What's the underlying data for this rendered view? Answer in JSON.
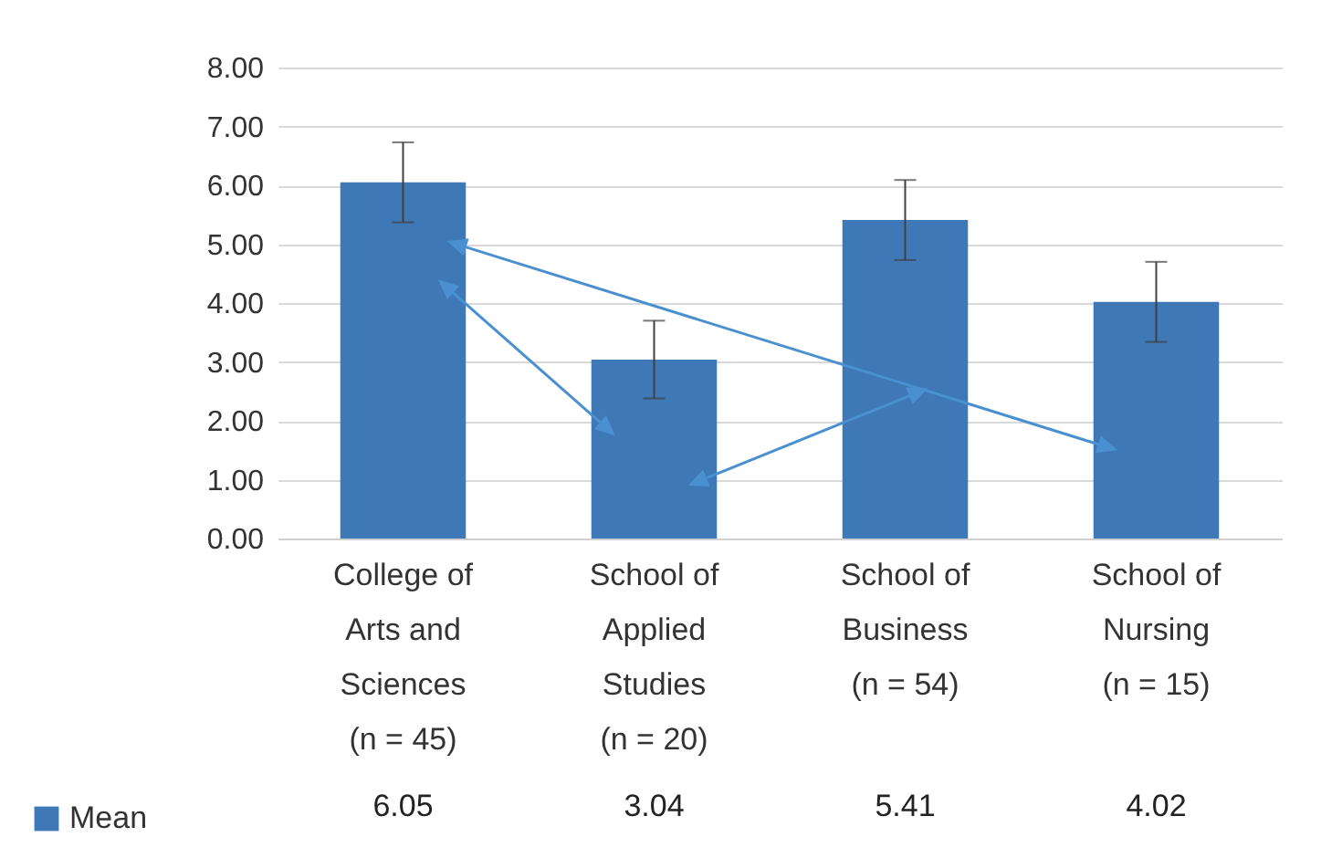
{
  "chart_data": {
    "type": "bar",
    "categories": [
      "College of Arts and Sciences (n = 45)",
      "School of Applied Studies (n = 20)",
      "School of Business (n = 54)",
      "School of Nursing (n = 15)"
    ],
    "series": [
      {
        "name": "Mean",
        "color": "#3e78b6",
        "values": [
          6.05,
          3.04,
          5.41,
          4.02
        ],
        "errors": [
          0.68,
          0.66,
          0.68,
          0.68
        ]
      }
    ],
    "ylim": [
      0,
      8
    ],
    "yticks": [
      {
        "value": 0,
        "label": "0.00"
      },
      {
        "value": 1,
        "label": "1.00"
      },
      {
        "value": 2,
        "label": "2.00"
      },
      {
        "value": 3,
        "label": "3.00"
      },
      {
        "value": 4,
        "label": "4.00"
      },
      {
        "value": 5,
        "label": "5.00"
      },
      {
        "value": 6,
        "label": "6.00"
      },
      {
        "value": 7,
        "label": "7.00"
      },
      {
        "value": 8,
        "label": "8.00"
      }
    ],
    "grid": "y",
    "legend": "bottom",
    "data_labels": true
  }
}
